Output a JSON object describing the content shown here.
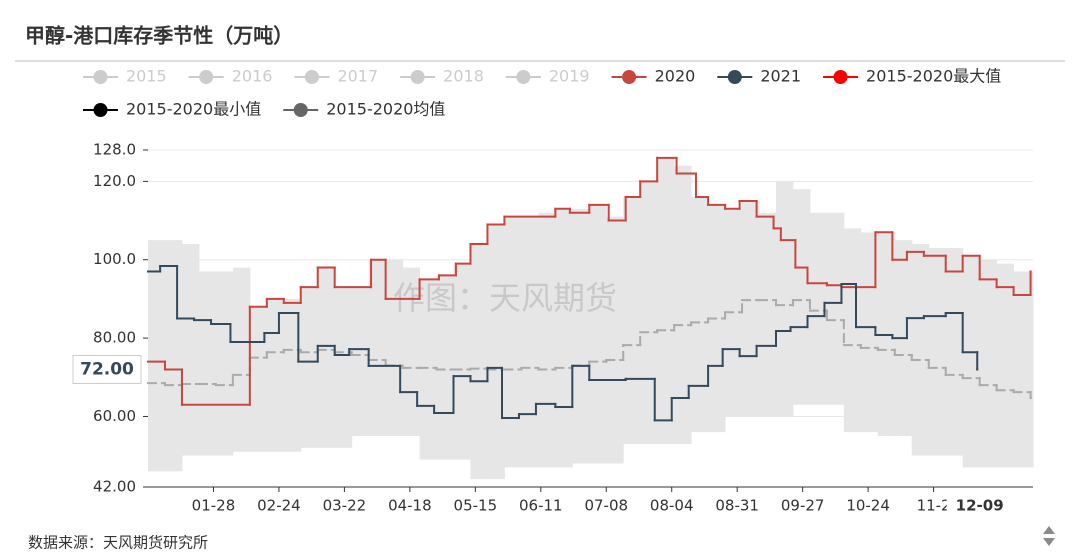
{
  "chart_data": {
    "type": "step-line",
    "title": "甲醇-港口库存季节性（万吨）",
    "watermark": "作图：天风期货",
    "source": "数据来源：天风期货研究所",
    "xlim": [
      1,
      366
    ],
    "xticks": [
      {
        "value": 28,
        "label": "01-28"
      },
      {
        "value": 55,
        "label": "02-24"
      },
      {
        "value": 82,
        "label": "03-22"
      },
      {
        "value": 109,
        "label": "04-18"
      },
      {
        "value": 136,
        "label": "05-15"
      },
      {
        "value": 163,
        "label": "06-11"
      },
      {
        "value": 190,
        "label": "07-08"
      },
      {
        "value": 217,
        "label": "08-04"
      },
      {
        "value": 244,
        "label": "08-31"
      },
      {
        "value": 271,
        "label": "09-27"
      },
      {
        "value": 298,
        "label": "10-24"
      },
      {
        "value": 325,
        "label": "11-2"
      }
    ],
    "ylim": [
      42,
      128
    ],
    "yticks": [
      {
        "value": 42,
        "label": "42.00"
      },
      {
        "value": 60,
        "label": "60.00"
      },
      {
        "value": 80,
        "label": "80.00"
      },
      {
        "value": 100,
        "label": "100.0"
      },
      {
        "value": 120,
        "label": "120.0"
      },
      {
        "value": 128,
        "label": "128.0"
      }
    ],
    "grid": true,
    "band_color": "#e6e6e6",
    "axis_pointer": {
      "x": {
        "value": 344,
        "label": "12-09"
      },
      "y": {
        "value": 72,
        "label": "72.00"
      }
    },
    "series": [
      {
        "name": "2015",
        "color": "#cccccc",
        "hidden": true
      },
      {
        "name": "2016",
        "color": "#cccccc",
        "hidden": true
      },
      {
        "name": "2017",
        "color": "#cccccc",
        "hidden": true
      },
      {
        "name": "2018",
        "color": "#cccccc",
        "hidden": true
      },
      {
        "name": "2019",
        "color": "#cccccc",
        "hidden": true
      },
      {
        "name": "2020",
        "color": "#c9453f",
        "x": [
          1,
          8,
          15,
          43,
          50,
          57,
          64,
          71,
          78,
          93,
          99,
          113,
          121,
          128,
          134,
          141,
          148,
          169,
          175,
          183,
          191,
          198,
          204,
          211,
          219,
          227,
          232,
          239,
          245,
          252,
          259,
          262,
          268,
          273,
          281,
          287,
          293,
          301,
          308,
          314,
          321,
          330,
          337,
          344,
          351,
          358,
          365
        ],
        "values": [
          74,
          72,
          63,
          88,
          90,
          89,
          93,
          98,
          93,
          100,
          90,
          95,
          96,
          99,
          104,
          109,
          111,
          113,
          112,
          114,
          110,
          116,
          120,
          126,
          122,
          116,
          114,
          113,
          115,
          111,
          108,
          105,
          98,
          94,
          93.5,
          93,
          93,
          107,
          100,
          102,
          101,
          97,
          101,
          95,
          93,
          91,
          97
        ]
      },
      {
        "name": "2021",
        "color": "#34495a",
        "x": [
          1,
          6,
          13,
          20,
          27,
          35,
          49,
          55,
          63,
          71,
          78,
          84,
          92,
          105,
          112,
          119,
          127,
          134,
          141,
          147,
          154,
          161,
          169,
          176,
          183,
          198,
          210,
          217,
          224,
          232,
          238,
          245,
          252,
          260,
          266,
          273,
          280,
          287,
          293,
          301,
          308,
          314,
          321,
          330,
          337,
          343
        ],
        "values": [
          97,
          98.4,
          85,
          84.6,
          83.6,
          79,
          81.3,
          86.4,
          74,
          78,
          75.7,
          77.2,
          72.9,
          66.2,
          62.7,
          60.9,
          70.3,
          69,
          72.4,
          59.6,
          60.6,
          63.2,
          62.4,
          72.9,
          69.3,
          69.6,
          59,
          64.7,
          67.8,
          72.9,
          77.2,
          75.4,
          78,
          81.8,
          82.8,
          85.6,
          89,
          93.8,
          82.8,
          80.8,
          80,
          85.1,
          85.6,
          86.4,
          76.4,
          72
        ]
      },
      {
        "name": "2015-2020最大值",
        "color": "#ff0000",
        "band": "max",
        "x": [
          1,
          8,
          15,
          22,
          29,
          36,
          43,
          50,
          57,
          64,
          71,
          78,
          85,
          92,
          99,
          106,
          113,
          120,
          127,
          134,
          141,
          148,
          155,
          162,
          169,
          176,
          183,
          190,
          197,
          204,
          211,
          218,
          225,
          232,
          239,
          246,
          253,
          260,
          267,
          274,
          281,
          288,
          295,
          302,
          309,
          316,
          323,
          330,
          337,
          344,
          351,
          358,
          365
        ],
        "values": [
          105,
          105,
          104,
          97,
          97,
          98,
          88,
          90,
          90,
          93,
          98,
          93,
          93,
          100,
          100,
          98,
          95,
          96,
          99,
          104,
          109,
          111,
          111,
          112,
          113,
          113,
          114,
          111,
          116,
          120,
          126,
          124,
          116,
          114,
          113,
          115,
          112,
          120,
          118,
          112,
          112,
          108,
          107,
          107,
          105,
          104,
          103,
          103,
          101,
          100,
          99,
          97,
          97
        ]
      },
      {
        "name": "2015-2020最小值",
        "color": "#000000",
        "band": "min",
        "x": [
          1,
          8,
          15,
          22,
          29,
          36,
          43,
          50,
          57,
          64,
          71,
          78,
          85,
          92,
          99,
          106,
          113,
          120,
          127,
          134,
          141,
          148,
          155,
          162,
          169,
          176,
          183,
          190,
          197,
          204,
          211,
          218,
          225,
          232,
          239,
          246,
          253,
          260,
          267,
          274,
          281,
          288,
          295,
          302,
          309,
          316,
          323,
          330,
          337,
          344,
          351,
          358,
          365
        ],
        "values": [
          46,
          46,
          50,
          50,
          50,
          51,
          51,
          51,
          51,
          52,
          52,
          52,
          55,
          55,
          55,
          55,
          49,
          49,
          49,
          44,
          44,
          47,
          47,
          47,
          47,
          48,
          48,
          48,
          53,
          53,
          53,
          53,
          56,
          56,
          60,
          60,
          60,
          60,
          63,
          63,
          63,
          56,
          56,
          55,
          55,
          50,
          50,
          50,
          47,
          47,
          47,
          47,
          47
        ]
      },
      {
        "name": "2015-2020均值",
        "color": "#666666",
        "line_color": "#aaaaaa",
        "dash": true,
        "x": [
          1,
          8,
          15,
          22,
          29,
          36,
          43,
          50,
          57,
          64,
          71,
          78,
          85,
          92,
          99,
          106,
          113,
          120,
          127,
          134,
          141,
          148,
          155,
          162,
          169,
          176,
          183,
          190,
          197,
          204,
          211,
          218,
          225,
          232,
          239,
          246,
          253,
          260,
          267,
          274,
          281,
          288,
          295,
          302,
          309,
          316,
          323,
          330,
          337,
          344,
          351,
          358,
          365
        ],
        "values": [
          68.5,
          68,
          68.3,
          68.3,
          68,
          70.6,
          75,
          76.4,
          77,
          76.4,
          77,
          76.4,
          75.7,
          74.4,
          73,
          72.4,
          72.4,
          72,
          72,
          72.2,
          72,
          72,
          72.4,
          72,
          72.4,
          73,
          74,
          74.4,
          78.2,
          81.5,
          82,
          83.3,
          84,
          85,
          86.6,
          89.7,
          89.7,
          88.4,
          89.7,
          87,
          84.6,
          78.2,
          77.5,
          77,
          75.7,
          74.4,
          72.4,
          70.6,
          69.8,
          68,
          66.7,
          66.2,
          64.7
        ]
      }
    ]
  }
}
